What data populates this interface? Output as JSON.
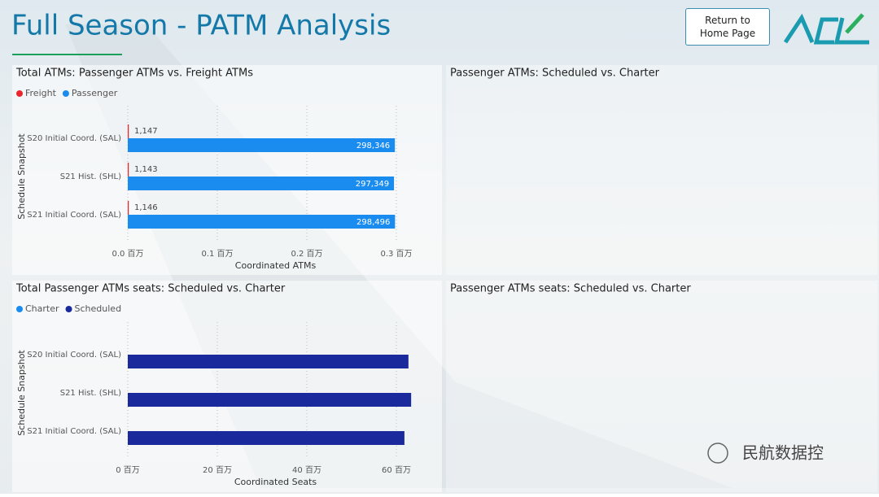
{
  "header": {
    "title": "Full Season - PATM Analysis",
    "button": "Return to Home Page"
  },
  "chart_data": [
    {
      "type": "bar",
      "orientation": "horizontal",
      "title": "Total ATMs: Passenger ATMs vs. Freight ATMs",
      "y_label": "Schedule Snapshot",
      "x_label": "Coordinated ATMs",
      "categories": [
        "S20 Initial Coord. (SAL)",
        "S21 Hist. (SHL)",
        "S21 Initial Coord. (SAL)"
      ],
      "series": [
        {
          "name": "Freight",
          "color": "#e8262e",
          "values": [
            1147,
            1143,
            1146
          ],
          "value_labels": [
            "1,147",
            "1,143",
            "1,146"
          ]
        },
        {
          "name": "Passenger",
          "color": "#1a8cf0",
          "values": [
            298346,
            297349,
            298496
          ],
          "value_labels": [
            "298,346",
            "297,349",
            "298,496"
          ]
        }
      ],
      "xlim": [
        0,
        320000
      ],
      "xticks": [
        {
          "value": 0,
          "label": "0.0 百万"
        },
        {
          "value": 100000,
          "label": "0.1 百万"
        },
        {
          "value": 200000,
          "label": "0.2 百万"
        },
        {
          "value": 300000,
          "label": "0.3 百万"
        }
      ],
      "grid": true,
      "legend": "top-left"
    },
    {
      "type": "bar",
      "orientation": "horizontal",
      "title": "Total Passenger ATMs seats: Scheduled vs. Charter",
      "y_label": "Schedule Snapshot",
      "x_label": "Coordinated Seats",
      "categories": [
        "S20 Initial Coord. (SAL)",
        "S21 Hist. (SHL)",
        "S21 Initial Coord. (SAL)"
      ],
      "series": [
        {
          "name": "Charter",
          "color": "#1a8cf0",
          "values": [
            null,
            null,
            null
          ]
        },
        {
          "name": "Scheduled",
          "color": "#1a2a9c",
          "values": [
            62700000,
            63300000,
            61800000
          ]
        }
      ],
      "xlim": [
        0,
        64000000
      ],
      "xticks": [
        {
          "value": 0,
          "label": "0 百万"
        },
        {
          "value": 20000000,
          "label": "20 百万"
        },
        {
          "value": 40000000,
          "label": "40 百万"
        },
        {
          "value": 60000000,
          "label": "60 百万"
        }
      ],
      "grid": true,
      "legend": "top-left"
    }
  ],
  "empty_panels": [
    {
      "title": "Passenger ATMs: Scheduled vs. Charter"
    },
    {
      "title": "Passenger ATMs seats: Scheduled vs. Charter"
    }
  ],
  "watermark": "民航数据控"
}
